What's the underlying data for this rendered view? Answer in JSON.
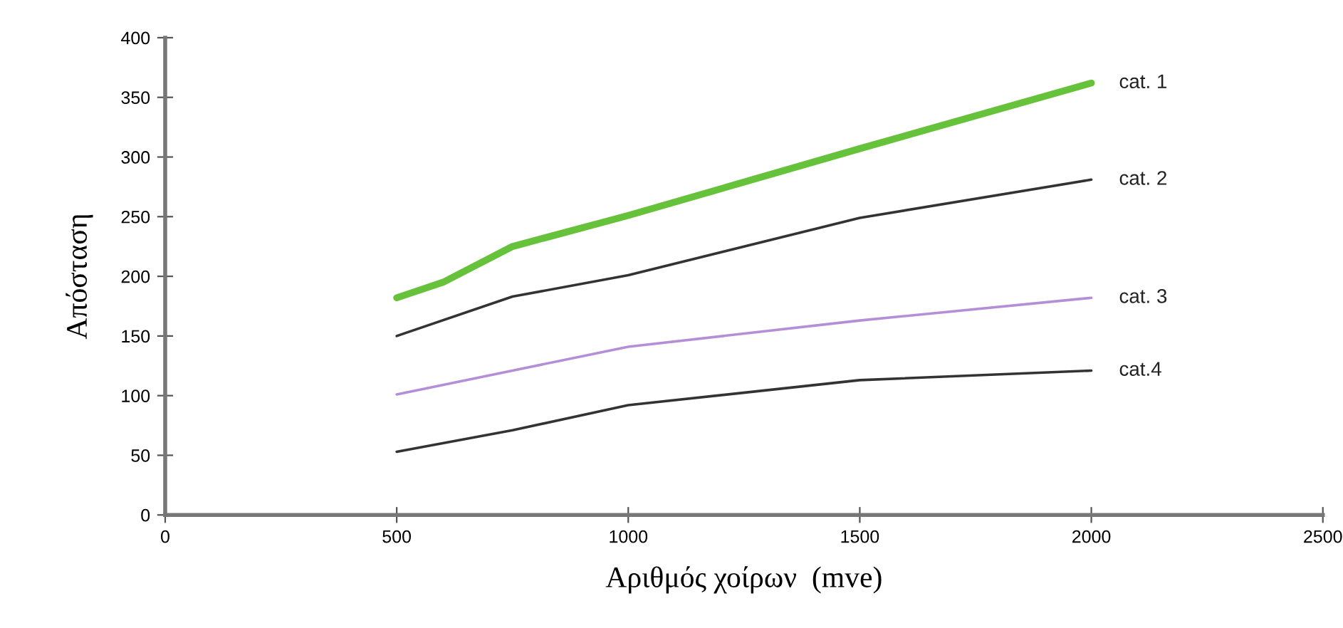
{
  "chart_data": {
    "type": "line",
    "xlabel": "Αριθμός χοίρων  (mve)",
    "ylabel": "Απόσταση",
    "xlim": [
      0,
      2500
    ],
    "xticks": [
      0,
      500,
      1000,
      1500,
      2000,
      2500
    ],
    "ylim": [
      0,
      400
    ],
    "yticks": [
      0,
      50,
      100,
      150,
      200,
      250,
      300,
      350,
      400
    ],
    "grid": false,
    "legend": false,
    "marker": "none",
    "line_style": "solid",
    "series": [
      {
        "name": "cat. 1",
        "color": "#66c23a",
        "x": [
          500,
          600,
          750,
          1000,
          1500,
          2000
        ],
        "values": [
          182,
          195,
          225,
          251,
          307,
          362
        ]
      },
      {
        "name": "cat. 2",
        "color": "#333333",
        "x": [
          500,
          750,
          1000,
          1500,
          2000
        ],
        "values": [
          150,
          183,
          201,
          249,
          281
        ]
      },
      {
        "name": "cat. 3",
        "color": "#b48fd8",
        "x": [
          500,
          750,
          1000,
          1500,
          2000
        ],
        "values": [
          101,
          121,
          141,
          163,
          182
        ]
      },
      {
        "name": "cat.4",
        "color": "#333333",
        "x": [
          500,
          750,
          1000,
          1500,
          2000
        ],
        "values": [
          53,
          71,
          92,
          113,
          121
        ]
      }
    ]
  }
}
